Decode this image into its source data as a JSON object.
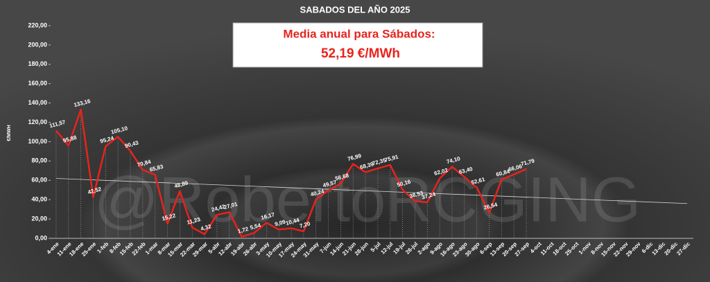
{
  "chart_data": {
    "type": "line",
    "title": "SABADOS DEL AÑO 2025",
    "subtitle": "Media anual para Sábados:",
    "annotation": "52,19  €/MWh",
    "y_label": "€/MWH",
    "watermark": "@RobertoRCGING",
    "categories": [
      "4-ene",
      "11-ene",
      "18-ene",
      "25-ene",
      "1-feb",
      "8-feb",
      "15-feb",
      "22-feb",
      "1-mar",
      "8-mar",
      "15-mar",
      "22-mar",
      "29-mar",
      "5-abr",
      "12-abr",
      "19-abr",
      "26-abr",
      "3-may",
      "10-may",
      "17-may",
      "24-may",
      "31-may",
      "7-jun",
      "14-jun",
      "21-jun",
      "28-jun",
      "5-jul",
      "12-jul",
      "19-jul",
      "26-jul",
      "2-ago",
      "9-ago",
      "16-ago",
      "23-ago",
      "30-ago",
      "6-sep",
      "13-sep",
      "20-sep",
      "27-sep",
      "4-oct",
      "11-oct",
      "18-oct",
      "25-oct",
      "1-nov",
      "8-nov",
      "15-nov",
      "22-nov",
      "29-nov",
      "6-dic",
      "13-dic",
      "20-dic",
      "27-dic"
    ],
    "series": [
      {
        "name": "Sábados",
        "color": "#e8231d",
        "values": [
          111.57,
          95.88,
          133.16,
          42.52,
          95.24,
          105.1,
          90.43,
          70.84,
          65.83,
          15.22,
          48.89,
          11.23,
          4.32,
          24.42,
          27.01,
          1.72,
          5.54,
          16.17,
          9.09,
          10.44,
          7.2,
          40.24,
          49.57,
          56.68,
          76.99,
          68.39,
          72.35,
          75.91,
          50.16,
          38.53,
          37.24,
          62.02,
          74.1,
          63.4,
          52.61,
          26.54,
          60.84,
          66.06,
          71.79,
          null,
          null,
          null,
          null,
          null,
          null,
          null,
          null,
          null,
          null,
          null,
          null,
          null
        ],
        "value_labels": [
          "111,57",
          "95,88",
          "133,16",
          "42,52",
          "95,24",
          "105,10",
          "90,43",
          "70,84",
          "65,83",
          "15,22",
          "48,89",
          "11,23",
          "4,32",
          "24,42",
          "27,01",
          "1,72",
          "5,54",
          "16,17",
          "9,09",
          "10,44",
          "7,20",
          "40,24",
          "49,57",
          "56,68",
          "76,99",
          "68,39",
          "72,35",
          "75,91",
          "50,16",
          "38,53",
          "37,24",
          "62,02",
          "74,10",
          "63,40",
          "52,61",
          "26,54",
          "60,84",
          "66,06",
          "71,79",
          null,
          null,
          null,
          null,
          null,
          null,
          null,
          null,
          null,
          null,
          null,
          null,
          null
        ]
      }
    ],
    "trendline": {
      "color": "#d9d9d9",
      "values": [
        62,
        36
      ]
    },
    "ylim": [
      0,
      220
    ],
    "yticks": [
      {
        "value": 0,
        "label": "0,00"
      },
      {
        "value": 20,
        "label": "20,00"
      },
      {
        "value": 40,
        "label": "40,00"
      },
      {
        "value": 60,
        "label": "60,00"
      },
      {
        "value": 80,
        "label": "80,00"
      },
      {
        "value": 100,
        "label": "100,00"
      },
      {
        "value": 120,
        "label": "120,00"
      },
      {
        "value": 140,
        "label": "140,00"
      },
      {
        "value": 160,
        "label": "160,00"
      },
      {
        "value": 180,
        "label": "180,00"
      },
      {
        "value": 200,
        "label": "200,00"
      },
      {
        "value": 220,
        "label": "220,00"
      }
    ]
  }
}
